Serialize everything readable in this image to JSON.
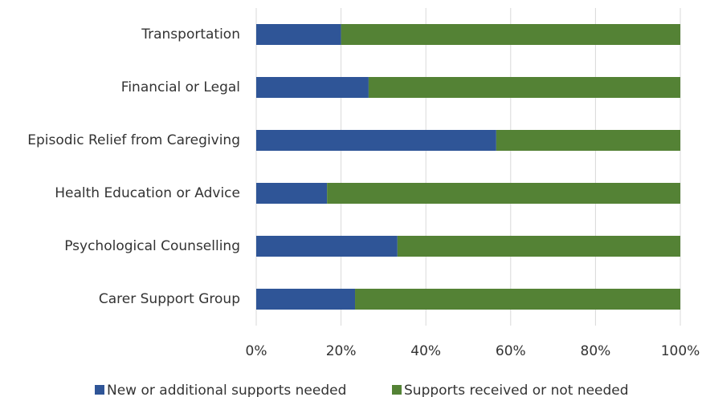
{
  "chart_data": {
    "type": "stacked_barh",
    "categories": [
      "Transportation",
      "Financial or Legal",
      "Episodic Relief from Caregiving",
      "Health Education or Advice",
      "Psychological Counselling",
      "Carer Support Group"
    ],
    "series": [
      {
        "name": "New or additional supports needed",
        "color": "#2f5597",
        "values": [
          20,
          26.5,
          56.6,
          16.7,
          33.3,
          23.3
        ]
      },
      {
        "name": "Supports received or not needed",
        "color": "#548235",
        "values": [
          80,
          73.5,
          43.4,
          83.3,
          66.7,
          76.7
        ]
      }
    ],
    "xlim": [
      0,
      100
    ],
    "xticks": [
      {
        "value": 0,
        "label": "0%"
      },
      {
        "value": 20,
        "label": "20%"
      },
      {
        "value": 40,
        "label": "40%"
      },
      {
        "value": 60,
        "label": "60%"
      },
      {
        "value": 80,
        "label": "80%"
      },
      {
        "value": 100,
        "label": "100%"
      }
    ],
    "grid": true,
    "legend": "bottom"
  }
}
